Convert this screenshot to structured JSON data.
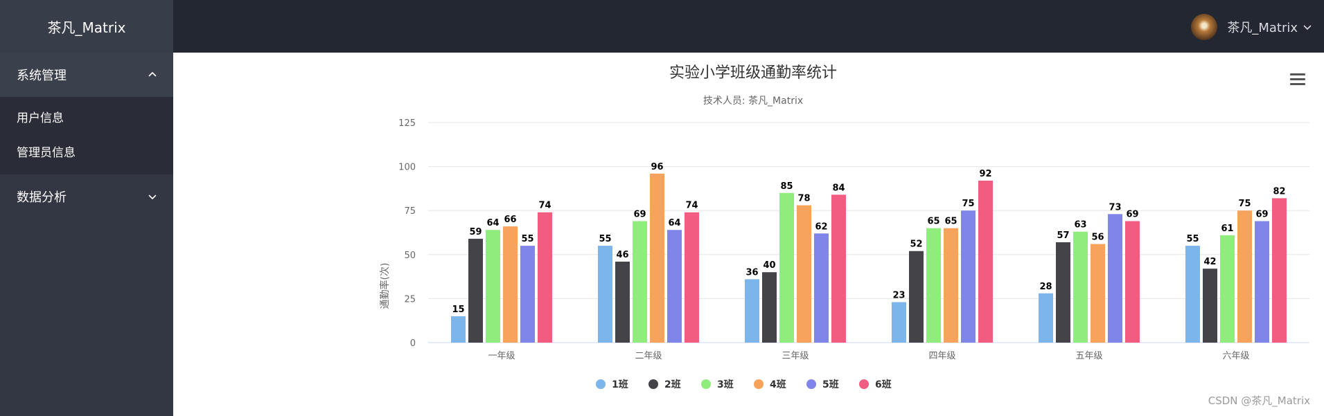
{
  "app": {
    "logo": "茶凡_Matrix"
  },
  "sidebar": {
    "menus": [
      {
        "label": "系统管理",
        "items": [
          "用户信息",
          "管理员信息"
        ]
      },
      {
        "label": "数据分析"
      }
    ]
  },
  "header": {
    "username": "茶凡_Matrix"
  },
  "chart_data": {
    "type": "bar",
    "title": "实验小学班级通勤率统计",
    "subtitle": "技术人员: 茶凡_Matrix",
    "ylabel": "通勤率(次)",
    "xlabel": "",
    "ylim": [
      0,
      125
    ],
    "yticks": [
      0,
      25,
      50,
      75,
      100,
      125
    ],
    "grid": true,
    "legend": "bottom-center",
    "categories": [
      "一年级",
      "二年级",
      "三年级",
      "四年级",
      "五年级",
      "六年级"
    ],
    "series": [
      {
        "name": "1班",
        "color": "#7cb5ec",
        "values": [
          15,
          55,
          36,
          23,
          28,
          55
        ]
      },
      {
        "name": "2班",
        "color": "#434348",
        "values": [
          59,
          46,
          40,
          52,
          57,
          42
        ]
      },
      {
        "name": "3班",
        "color": "#90ed7d",
        "values": [
          64,
          69,
          85,
          65,
          63,
          61
        ]
      },
      {
        "name": "4班",
        "color": "#f7a35c",
        "values": [
          66,
          96,
          78,
          65,
          56,
          75
        ]
      },
      {
        "name": "5班",
        "color": "#8085e9",
        "values": [
          55,
          64,
          62,
          75,
          73,
          69
        ]
      },
      {
        "name": "6班",
        "color": "#f15c80",
        "values": [
          74,
          74,
          84,
          92,
          69,
          82
        ]
      }
    ]
  },
  "watermark": "CSDN @茶凡_Matrix"
}
